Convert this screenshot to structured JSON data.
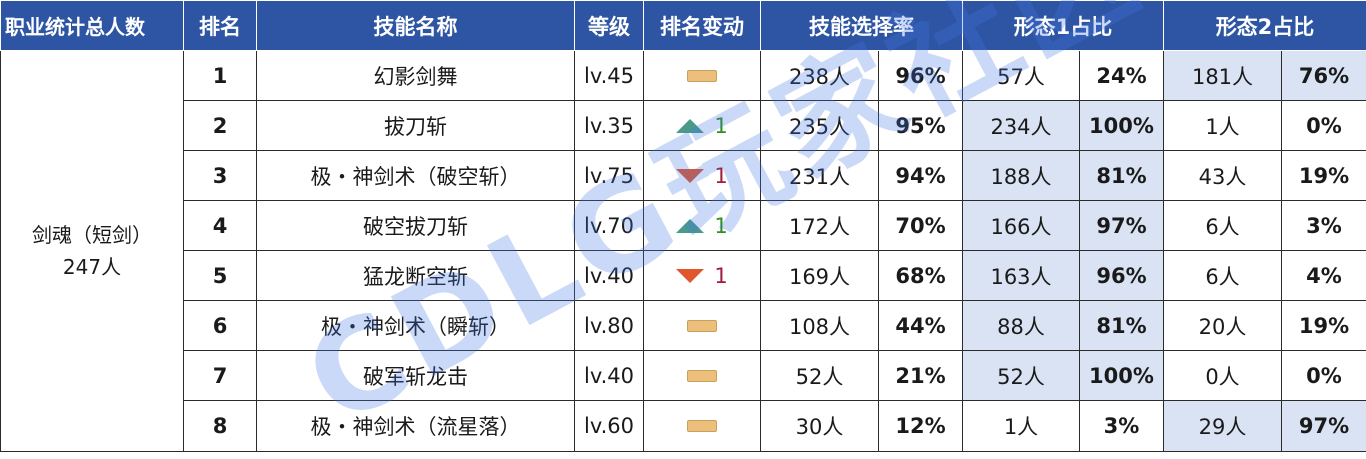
{
  "headers": [
    "职业统计总人数",
    "排名",
    "技能名称",
    "等级",
    "排名变动",
    "技能选择率",
    "形态1占比",
    "形态2占比"
  ],
  "profession": {
    "name": "剑魂（短剑）",
    "count": "247人"
  },
  "rows": [
    {
      "rank": "1",
      "skill": "幻影剑舞",
      "level": "lv.45",
      "change": {
        "type": "none",
        "icon": "dash-icon",
        "value": ""
      },
      "sel_count": "238人",
      "sel_pct": "96%",
      "f1_count": "57人",
      "f1_pct": "24%",
      "f2_count": "181人",
      "f2_pct": "76%"
    },
    {
      "rank": "2",
      "skill": "拔刀斩",
      "level": "lv.35",
      "change": {
        "type": "up",
        "icon": "arrow-up-icon",
        "value": "1"
      },
      "sel_count": "235人",
      "sel_pct": "95%",
      "f1_count": "234人",
      "f1_pct": "100%",
      "f2_count": "1人",
      "f2_pct": "0%"
    },
    {
      "rank": "3",
      "skill": "极・神剑术（破空斩）",
      "level": "lv.75",
      "change": {
        "type": "down",
        "icon": "arrow-down-icon",
        "value": "1"
      },
      "sel_count": "231人",
      "sel_pct": "94%",
      "f1_count": "188人",
      "f1_pct": "81%",
      "f2_count": "43人",
      "f2_pct": "19%"
    },
    {
      "rank": "4",
      "skill": "破空拔刀斩",
      "level": "lv.70",
      "change": {
        "type": "up",
        "icon": "arrow-up-icon",
        "value": "1"
      },
      "sel_count": "172人",
      "sel_pct": "70%",
      "f1_count": "166人",
      "f1_pct": "97%",
      "f2_count": "6人",
      "f2_pct": "3%"
    },
    {
      "rank": "5",
      "skill": "猛龙断空斩",
      "level": "lv.40",
      "change": {
        "type": "down",
        "icon": "arrow-down-icon",
        "value": "1"
      },
      "sel_count": "169人",
      "sel_pct": "68%",
      "f1_count": "163人",
      "f1_pct": "96%",
      "f2_count": "6人",
      "f2_pct": "4%"
    },
    {
      "rank": "6",
      "skill": "极・神剑术（瞬斩）",
      "level": "lv.80",
      "change": {
        "type": "none",
        "icon": "dash-icon",
        "value": ""
      },
      "sel_count": "108人",
      "sel_pct": "44%",
      "f1_count": "88人",
      "f1_pct": "81%",
      "f2_count": "20人",
      "f2_pct": "19%"
    },
    {
      "rank": "7",
      "skill": "破军斩龙击",
      "level": "lv.40",
      "change": {
        "type": "none",
        "icon": "dash-icon",
        "value": ""
      },
      "sel_count": "52人",
      "sel_pct": "21%",
      "f1_count": "52人",
      "f1_pct": "100%",
      "f2_count": "0人",
      "f2_pct": "0%"
    },
    {
      "rank": "8",
      "skill": "极・神剑术（流星落）",
      "level": "lv.60",
      "change": {
        "type": "none",
        "icon": "dash-icon",
        "value": ""
      },
      "sel_count": "30人",
      "sel_pct": "12%",
      "f1_count": "1人",
      "f1_pct": "3%",
      "f2_count": "29人",
      "f2_pct": "97%"
    }
  ],
  "watermark": "CDLG玩家社区",
  "colors": {
    "header_bg": "#2e55a3",
    "highlight": "#dae3f3",
    "up": "#4a9a8a",
    "down": "#e0562d"
  }
}
